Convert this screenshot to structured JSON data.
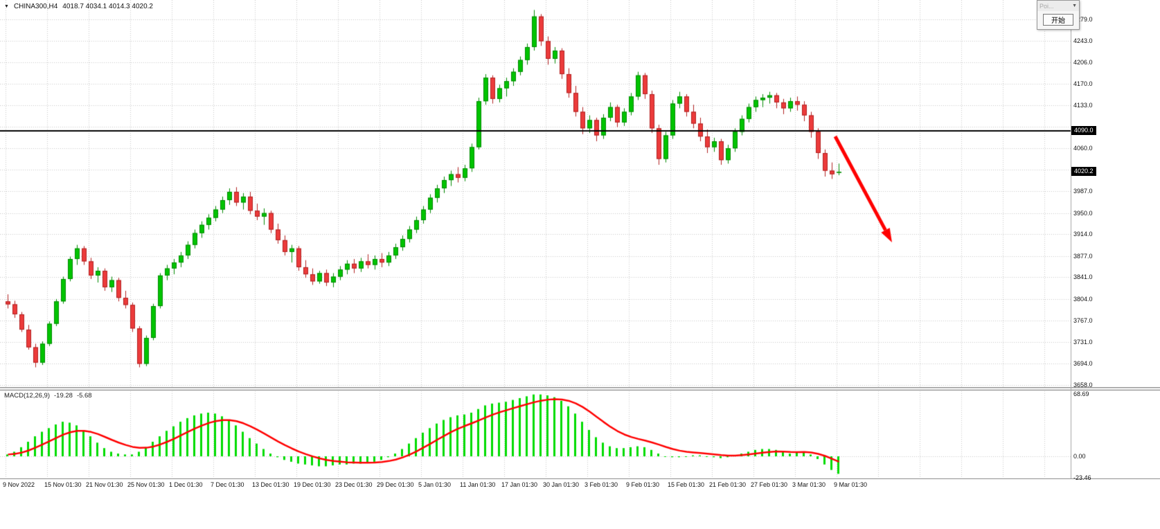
{
  "header": {
    "symbol": "CHINA300,H4",
    "ohlc": "4018.7 4034.1 4014.3 4020.2"
  },
  "popup": {
    "title": "Poi...",
    "button_label": "开始"
  },
  "price_axis": {
    "labels": [
      {
        "text": "4279.0",
        "value": 4279.0
      },
      {
        "text": "4243.0",
        "value": 4243.0
      },
      {
        "text": "4206.0",
        "value": 4206.0
      },
      {
        "text": "4170.0",
        "value": 4170.0
      },
      {
        "text": "4133.0",
        "value": 4133.0
      },
      {
        "text": "4060.0",
        "value": 4060.0
      },
      {
        "text": "3987.0",
        "value": 3987.0
      },
      {
        "text": "3950.0",
        "value": 3950.0
      },
      {
        "text": "3914.0",
        "value": 3914.0
      },
      {
        "text": "3877.0",
        "value": 3877.0
      },
      {
        "text": "3841.0",
        "value": 3841.0
      },
      {
        "text": "3804.0",
        "value": 3804.0
      },
      {
        "text": "3767.0",
        "value": 3767.0
      },
      {
        "text": "3731.0",
        "value": 3731.0
      },
      {
        "text": "3694.0",
        "value": 3694.0
      },
      {
        "text": "3658.0",
        "value": 3658.0
      }
    ],
    "tags": [
      {
        "text": "4090.0",
        "value": 4090.0,
        "kind": "hline"
      },
      {
        "text": "4020.2",
        "value": 4020.2,
        "kind": "bid"
      }
    ]
  },
  "time_axis": {
    "labels": [
      "9 Nov 2022",
      "15 Nov 01:30",
      "21 Nov 01:30",
      "25 Nov 01:30",
      "1 Dec 01:30",
      "7 Dec 01:30",
      "13 Dec 01:30",
      "19 Dec 01:30",
      "23 Dec 01:30",
      "29 Dec 01:30",
      "5 Jan 01:30",
      "11 Jan 01:30",
      "17 Jan 01:30",
      "30 Jan 01:30",
      "3 Feb 01:30",
      "9 Feb 01:30",
      "15 Feb 01:30",
      "21 Feb 01:30",
      "27 Feb 01:30",
      "3 Mar 01:30",
      "9 Mar 01:30"
    ]
  },
  "macd_panel": {
    "title": "MACD(12,26,9)",
    "main_value": "-19.28",
    "signal_value": "-5.68",
    "axis_labels": [
      {
        "text": "68.69",
        "value": 68.69
      },
      {
        "text": "0.00",
        "value": 0
      },
      {
        "text": "-23.46",
        "value": -23.46
      }
    ]
  },
  "colors": {
    "background": "#FFFFFF",
    "grid": "#C8C8C8",
    "bull": "#00C400",
    "bull_border": "#008A00",
    "bear": "#EC3B3B",
    "bear_border": "#B02020",
    "macd_histogram": "#00DC00",
    "macd_signal": "#FF0000",
    "hline": "#000000",
    "arrow": "#FF0000",
    "tag_bg": "#000000",
    "tag_text": "#FFFFFF"
  },
  "chart_data": [
    {
      "type": "candlestick",
      "title": "CHINA300,H4",
      "ylabel": "price",
      "ylim": [
        3658,
        4297
      ],
      "grid": true,
      "price_gridlines": [
        4279,
        4243,
        4206,
        4170,
        4133,
        4097,
        4060,
        4024,
        3987,
        3950,
        3914,
        3877,
        3841,
        3804,
        3767,
        3731,
        3694,
        3658
      ],
      "hline": 4090.0,
      "last_close": 4020.2,
      "x_labels": [
        "9 Nov 2022",
        "15 Nov 01:30",
        "21 Nov 01:30",
        "25 Nov 01:30",
        "1 Dec 01:30",
        "7 Dec 01:30",
        "13 Dec 01:30",
        "19 Dec 01:30",
        "23 Dec 01:30",
        "29 Dec 01:30",
        "5 Jan 01:30",
        "11 Jan 01:30",
        "17 Jan 01:30",
        "30 Jan 01:30",
        "3 Feb 01:30",
        "9 Feb 01:30",
        "15 Feb 01:30",
        "21 Feb 01:30",
        "27 Feb 01:30",
        "3 Mar 01:30",
        "9 Mar 01:30"
      ],
      "candles_per_label": 6,
      "annotations": [
        {
          "type": "arrow",
          "color": "#FF0000",
          "direction": "down-right"
        },
        {
          "type": "horizontal-line",
          "color": "#000000",
          "value": 4090.0
        }
      ],
      "ohlc": [
        [
          3800,
          3812,
          3788,
          3795
        ],
        [
          3795,
          3801,
          3772,
          3778
        ],
        [
          3778,
          3782,
          3748,
          3752
        ],
        [
          3752,
          3760,
          3718,
          3722
        ],
        [
          3722,
          3728,
          3688,
          3696
        ],
        [
          3696,
          3732,
          3692,
          3728
        ],
        [
          3728,
          3766,
          3724,
          3762
        ],
        [
          3762,
          3804,
          3758,
          3800
        ],
        [
          3800,
          3842,
          3796,
          3838
        ],
        [
          3838,
          3876,
          3834,
          3872
        ],
        [
          3872,
          3896,
          3862,
          3890
        ],
        [
          3890,
          3894,
          3862,
          3868
        ],
        [
          3868,
          3874,
          3838,
          3844
        ],
        [
          3844,
          3858,
          3832,
          3852
        ],
        [
          3852,
          3856,
          3818,
          3824
        ],
        [
          3824,
          3842,
          3816,
          3836
        ],
        [
          3836,
          3840,
          3800,
          3806
        ],
        [
          3806,
          3818,
          3788,
          3794
        ],
        [
          3794,
          3798,
          3748,
          3754
        ],
        [
          3754,
          3758,
          3688,
          3694
        ],
        [
          3694,
          3742,
          3690,
          3738
        ],
        [
          3738,
          3796,
          3734,
          3792
        ],
        [
          3792,
          3848,
          3788,
          3844
        ],
        [
          3844,
          3862,
          3836,
          3856
        ],
        [
          3856,
          3872,
          3846,
          3866
        ],
        [
          3866,
          3884,
          3858,
          3878
        ],
        [
          3878,
          3902,
          3872,
          3896
        ],
        [
          3896,
          3922,
          3890,
          3916
        ],
        [
          3916,
          3936,
          3908,
          3930
        ],
        [
          3930,
          3948,
          3922,
          3942
        ],
        [
          3942,
          3962,
          3936,
          3956
        ],
        [
          3956,
          3978,
          3950,
          3972
        ],
        [
          3972,
          3992,
          3964,
          3986
        ],
        [
          3986,
          3994,
          3962,
          3968
        ],
        [
          3968,
          3984,
          3956,
          3978
        ],
        [
          3978,
          3986,
          3948,
          3954
        ],
        [
          3954,
          3966,
          3938,
          3944
        ],
        [
          3944,
          3958,
          3930,
          3950
        ],
        [
          3950,
          3954,
          3916,
          3922
        ],
        [
          3922,
          3932,
          3898,
          3904
        ],
        [
          3904,
          3912,
          3878,
          3884
        ],
        [
          3884,
          3896,
          3866,
          3890
        ],
        [
          3890,
          3894,
          3852,
          3858
        ],
        [
          3858,
          3870,
          3840,
          3846
        ],
        [
          3846,
          3856,
          3828,
          3834
        ],
        [
          3834,
          3852,
          3830,
          3848
        ],
        [
          3848,
          3854,
          3826,
          3832
        ],
        [
          3832,
          3848,
          3824,
          3842
        ],
        [
          3842,
          3860,
          3836,
          3854
        ],
        [
          3854,
          3870,
          3846,
          3864
        ],
        [
          3864,
          3872,
          3848,
          3856
        ],
        [
          3856,
          3874,
          3850,
          3868
        ],
        [
          3868,
          3880,
          3856,
          3862
        ],
        [
          3862,
          3878,
          3854,
          3872
        ],
        [
          3872,
          3882,
          3858,
          3866
        ],
        [
          3866,
          3884,
          3860,
          3878
        ],
        [
          3878,
          3898,
          3872,
          3892
        ],
        [
          3892,
          3912,
          3886,
          3906
        ],
        [
          3906,
          3928,
          3900,
          3922
        ],
        [
          3922,
          3944,
          3916,
          3938
        ],
        [
          3938,
          3962,
          3932,
          3956
        ],
        [
          3956,
          3982,
          3950,
          3976
        ],
        [
          3976,
          3998,
          3968,
          3992
        ],
        [
          3992,
          4012,
          3984,
          4006
        ],
        [
          4006,
          4022,
          3996,
          4016
        ],
        [
          4016,
          4028,
          4002,
          4010
        ],
        [
          4010,
          4032,
          4004,
          4026
        ],
        [
          4026,
          4068,
          4020,
          4062
        ],
        [
          4062,
          4146,
          4058,
          4140
        ],
        [
          4140,
          4186,
          4134,
          4180
        ],
        [
          4180,
          4184,
          4136,
          4144
        ],
        [
          4144,
          4168,
          4138,
          4162
        ],
        [
          4162,
          4180,
          4148,
          4174
        ],
        [
          4174,
          4196,
          4166,
          4190
        ],
        [
          4190,
          4216,
          4184,
          4210
        ],
        [
          4210,
          4238,
          4202,
          4232
        ],
        [
          4232,
          4295,
          4226,
          4284
        ],
        [
          4284,
          4288,
          4234,
          4242
        ],
        [
          4242,
          4250,
          4202,
          4212
        ],
        [
          4212,
          4232,
          4204,
          4226
        ],
        [
          4226,
          4230,
          4178,
          4186
        ],
        [
          4186,
          4196,
          4146,
          4154
        ],
        [
          4154,
          4166,
          4114,
          4122
        ],
        [
          4122,
          4130,
          4084,
          4094
        ],
        [
          4094,
          4116,
          4086,
          4108
        ],
        [
          4108,
          4112,
          4072,
          4082
        ],
        [
          4082,
          4118,
          4076,
          4112
        ],
        [
          4112,
          4138,
          4106,
          4130
        ],
        [
          4130,
          4134,
          4096,
          4104
        ],
        [
          4104,
          4128,
          4098,
          4122
        ],
        [
          4122,
          4154,
          4116,
          4148
        ],
        [
          4148,
          4190,
          4142,
          4184
        ],
        [
          4184,
          4188,
          4144,
          4152
        ],
        [
          4152,
          4158,
          4086,
          4094
        ],
        [
          4094,
          4100,
          4032,
          4042
        ],
        [
          4042,
          4088,
          4036,
          4082
        ],
        [
          4082,
          4142,
          4076,
          4136
        ],
        [
          4136,
          4156,
          4128,
          4148
        ],
        [
          4148,
          4152,
          4114,
          4122
        ],
        [
          4122,
          4134,
          4094,
          4102
        ],
        [
          4102,
          4112,
          4072,
          4080
        ],
        [
          4080,
          4092,
          4052,
          4062
        ],
        [
          4062,
          4078,
          4054,
          4072
        ],
        [
          4072,
          4076,
          4032,
          4040
        ],
        [
          4040,
          4066,
          4034,
          4060
        ],
        [
          4060,
          4094,
          4054,
          4088
        ],
        [
          4088,
          4116,
          4082,
          4110
        ],
        [
          4110,
          4136,
          4104,
          4130
        ],
        [
          4130,
          4148,
          4122,
          4142
        ],
        [
          4142,
          4152,
          4130,
          4146
        ],
        [
          4146,
          4156,
          4136,
          4150
        ],
        [
          4150,
          4154,
          4128,
          4138
        ],
        [
          4138,
          4144,
          4118,
          4128
        ],
        [
          4128,
          4146,
          4122,
          4140
        ],
        [
          4140,
          4148,
          4124,
          4134
        ],
        [
          4134,
          4140,
          4106,
          4116
        ],
        [
          4116,
          4122,
          4078,
          4088
        ],
        [
          4088,
          4094,
          4042,
          4052
        ],
        [
          4052,
          4058,
          4012,
          4022
        ],
        [
          4022,
          4036,
          4008,
          4016
        ],
        [
          4018.7,
          4034.1,
          4014.3,
          4020.2
        ]
      ]
    },
    {
      "type": "bar",
      "title": "MACD(12,26,9)",
      "subtype": "macd",
      "params": [
        12,
        26,
        9
      ],
      "main_last": -19.28,
      "signal_last": -5.68,
      "ylim": [
        -23.46,
        68.69
      ],
      "zero_line": 0,
      "histogram": [
        2,
        5,
        10,
        16,
        22,
        27,
        31,
        35,
        38,
        37,
        34,
        28,
        22,
        15,
        9,
        5,
        3,
        2,
        2,
        5,
        10,
        16,
        22,
        28,
        33,
        38,
        42,
        45,
        47,
        48,
        47,
        44,
        40,
        34,
        27,
        20,
        14,
        8,
        3,
        -1,
        -4,
        -6,
        -8,
        -9,
        -10,
        -11,
        -11,
        -10,
        -9,
        -9,
        -8,
        -8,
        -7,
        -6,
        -4,
        -1,
        3,
        8,
        14,
        20,
        26,
        31,
        36,
        40,
        43,
        45,
        46,
        48,
        52,
        56,
        58,
        59,
        60,
        62,
        64,
        66,
        68,
        68,
        67,
        65,
        61,
        55,
        47,
        38,
        29,
        21,
        15,
        11,
        9,
        9,
        10,
        11,
        10,
        7,
        3,
        0,
        -1,
        -1,
        0,
        1,
        1,
        0,
        -1,
        -2,
        -1,
        1,
        3,
        5,
        7,
        8,
        8,
        7,
        5,
        3,
        4,
        5,
        2,
        -3,
        -9,
        -15,
        -19.28
      ]
    }
  ]
}
